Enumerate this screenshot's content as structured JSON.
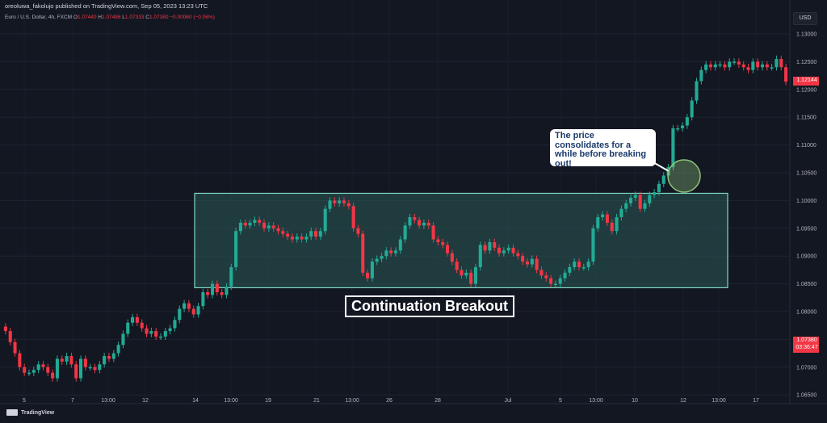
{
  "header": {
    "text": "oreoluwa_fakolujo published on TradingView.com, Sep 05, 2023 13:23 UTC"
  },
  "legend": {
    "symbol": "Euro / U.S. Dollar, 4h, FXCM",
    "open_label": "O",
    "open": "1.07440",
    "high_label": "H",
    "high": "1.07486",
    "low_label": "L",
    "low": "1.07333",
    "close_label": "C",
    "close": "1.07380",
    "change": "−0.00060 (−0.06%)"
  },
  "currency_button": "USD",
  "price_tags": {
    "top": {
      "value": "1.12144",
      "color": "#f23645"
    },
    "current": {
      "value": "1.07380",
      "timer": "03:36:47",
      "color": "#f23645"
    }
  },
  "annotations": {
    "breakout_label": "Continuation Breakout",
    "note": "The price consolidates for a while before breaking out!"
  },
  "footer": {
    "brand": "TradingView"
  },
  "colors": {
    "up": "#22ab94",
    "down": "#f23645",
    "range_fill": "#2a5a55",
    "range_border": "#7fd6c0",
    "circle": "#8fc47a"
  },
  "chart_data": {
    "type": "candlestick",
    "y_ticks": [
      "1.13000",
      "1.12500",
      "1.12000",
      "1.11500",
      "1.11000",
      "1.10500",
      "1.10000",
      "1.09500",
      "1.09000",
      "1.08500",
      "1.08000",
      "1.07500",
      "1.07000",
      "1.06500"
    ],
    "ylim": [
      1.0635,
      1.1325
    ],
    "x_ticks": [
      "5",
      "7",
      "13:00",
      "12",
      "14",
      "13:00",
      "19",
      "21",
      "13:00",
      "26",
      "28",
      "Jul",
      "5",
      "13:00",
      "10",
      "12",
      "13:00",
      "17"
    ],
    "consolidation_range": {
      "low": 1.0843,
      "high": 1.1013
    },
    "closes": [
      1.0765,
      1.0745,
      1.0725,
      1.07,
      1.069,
      1.069,
      1.0695,
      1.0705,
      1.07,
      1.069,
      1.068,
      1.0715,
      1.071,
      1.072,
      1.0705,
      1.068,
      1.0715,
      1.07,
      1.07,
      1.0695,
      1.0705,
      1.072,
      1.0715,
      1.0725,
      1.074,
      1.076,
      1.078,
      1.079,
      1.078,
      1.077,
      1.076,
      1.0765,
      1.0755,
      1.0755,
      1.0765,
      1.077,
      1.0785,
      1.0805,
      1.0815,
      1.0805,
      1.0795,
      1.081,
      1.0835,
      1.083,
      1.085,
      1.0835,
      1.083,
      1.0845,
      1.088,
      1.0945,
      1.096,
      1.0955,
      1.096,
      1.0965,
      1.096,
      1.095,
      1.0955,
      1.095,
      1.0945,
      1.094,
      1.0935,
      1.093,
      1.0935,
      1.093,
      1.0935,
      1.0945,
      1.0935,
      1.0945,
      1.0985,
      1.1,
      1.0995,
      1.1,
      1.0995,
      1.099,
      1.095,
      1.094,
      1.087,
      1.086,
      1.089,
      1.0895,
      1.09,
      1.091,
      1.0905,
      1.091,
      1.093,
      1.0955,
      1.097,
      1.0965,
      1.0955,
      1.096,
      1.0955,
      1.093,
      1.0925,
      1.092,
      1.0905,
      1.089,
      1.0875,
      1.0865,
      1.087,
      1.085,
      1.088,
      1.092,
      1.091,
      1.0925,
      1.0915,
      1.0905,
      1.091,
      1.0915,
      1.0905,
      1.09,
      1.089,
      1.0885,
      1.0895,
      1.0875,
      1.0865,
      1.086,
      1.085,
      1.085,
      1.086,
      1.087,
      1.088,
      1.089,
      1.088,
      1.088,
      1.089,
      1.095,
      1.097,
      1.0975,
      1.096,
      1.0945,
      1.097,
      1.0985,
      1.0995,
      1.1005,
      1.101,
      1.0985,
      1.0995,
      1.101,
      1.1015,
      1.103,
      1.1045,
      1.106,
      1.113,
      1.113,
      1.1135,
      1.115,
      1.118,
      1.1215,
      1.1235,
      1.1245,
      1.124,
      1.1245,
      1.1245,
      1.124,
      1.125,
      1.125,
      1.1245,
      1.124,
      1.1235,
      1.125,
      1.124,
      1.1245,
      1.124,
      1.124,
      1.1255,
      1.124,
      1.1214
    ]
  }
}
